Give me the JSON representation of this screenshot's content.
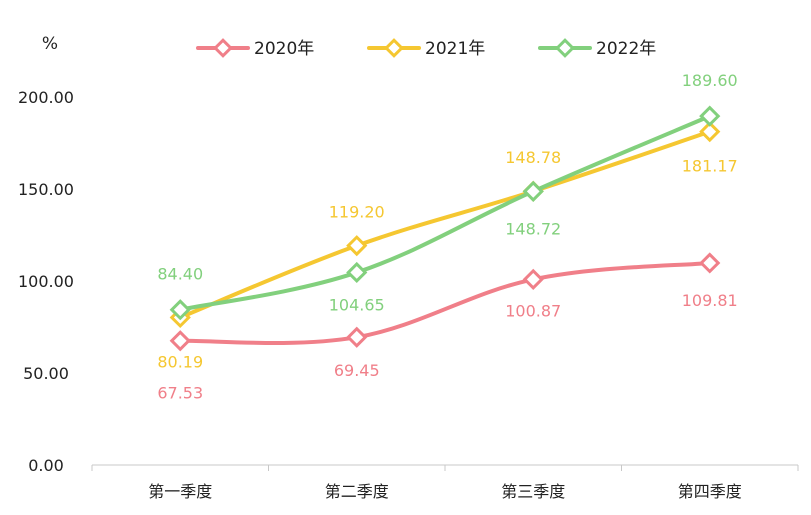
{
  "chart_data": {
    "type": "line",
    "smooth": true,
    "unit_label": "%",
    "categories": [
      "第一季度",
      "第二季度",
      "第三季度",
      "第四季度"
    ],
    "ylim": [
      0,
      200
    ],
    "yticks": [
      0,
      50,
      100,
      150,
      200
    ],
    "ytick_labels": [
      "0.00",
      "50.00",
      "100.00",
      "150.00",
      "200.00"
    ],
    "legend_position": "top",
    "series": [
      {
        "name": "2020年",
        "color": "#f07f89",
        "values": [
          67.53,
          69.45,
          100.87,
          109.81
        ],
        "labels": [
          "67.53",
          "69.45",
          "100.87",
          "109.81"
        ]
      },
      {
        "name": "2021年",
        "color": "#f5c731",
        "values": [
          80.19,
          119.2,
          148.78,
          181.17
        ],
        "labels": [
          "80.19",
          "119.20",
          "148.78",
          "181.17"
        ]
      },
      {
        "name": "2022年",
        "color": "#82d07d",
        "values": [
          84.4,
          104.65,
          148.72,
          189.6
        ],
        "labels": [
          "84.40",
          "104.65",
          "148.72",
          "189.60"
        ]
      }
    ]
  }
}
